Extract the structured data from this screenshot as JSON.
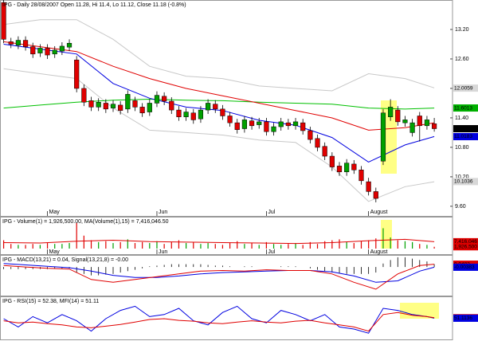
{
  "chart_data": [
    {
      "type": "candlestick",
      "title": "IPG - Daily 28/08/2007 Open 11.28, Hi 11.4, Lo 11.12, Close 11.18 (-0.8%)",
      "xlim": [
        -0.5,
        61.5
      ],
      "xticks": [
        {
          "value": 6,
          "label": "May"
        },
        {
          "value": 21,
          "label": "Jun"
        },
        {
          "value": 36,
          "label": "Jul"
        },
        {
          "value": 50,
          "label": "August"
        }
      ],
      "ylim": [
        9.55,
        13.8
      ],
      "yticks": [
        {
          "value": 13.2,
          "label": "13.20"
        },
        {
          "value": 12.6,
          "label": "12.60"
        },
        {
          "value": 12,
          "label": "12.00"
        },
        {
          "value": 11.4,
          "label": "11.40"
        },
        {
          "value": 10.8,
          "label": "10.80"
        },
        {
          "value": 10.2,
          "label": "10.20"
        },
        {
          "value": 9.6,
          "label": "9.60"
        }
      ],
      "up_color": "#00a000",
      "down_color": "#e00000",
      "open": [
        13.75,
        12.95,
        12.88,
        12.98,
        12.85,
        12.72,
        12.82,
        12.7,
        12.76,
        12.84,
        12.58,
        12.0,
        11.75,
        11.62,
        11.7,
        11.6,
        11.66,
        11.58,
        11.75,
        11.62,
        11.52,
        11.7,
        11.84,
        11.74,
        11.56,
        11.42,
        11.5,
        11.38,
        11.56,
        11.68,
        11.58,
        11.44,
        11.3,
        11.18,
        11.34,
        11.26,
        11.32,
        11.12,
        11.22,
        11.3,
        11.24,
        11.3,
        11.14,
        10.98,
        10.82,
        10.62,
        10.42,
        10.3,
        10.46,
        10.34,
        10.1,
        9.9,
        10.52,
        11.42,
        11.56,
        11.3,
        11.1,
        11.44,
        11.24,
        11.28
      ],
      "high": [
        13.8,
        13.03,
        13.06,
        13.06,
        12.93,
        12.9,
        12.9,
        12.86,
        12.94,
        13.0,
        12.66,
        12.08,
        11.83,
        11.8,
        11.78,
        11.76,
        11.74,
        11.96,
        11.83,
        11.7,
        11.78,
        11.94,
        11.92,
        11.82,
        11.64,
        11.6,
        11.58,
        11.64,
        11.78,
        11.76,
        11.66,
        11.52,
        11.38,
        11.44,
        11.42,
        11.4,
        11.4,
        11.3,
        11.4,
        11.38,
        11.4,
        11.38,
        11.22,
        11.06,
        10.9,
        10.7,
        10.5,
        10.56,
        10.54,
        10.42,
        10.18,
        9.98,
        11.58,
        11.78,
        11.64,
        11.44,
        11.38,
        11.52,
        11.44,
        11.4
      ],
      "low": [
        12.92,
        12.82,
        12.8,
        12.77,
        12.62,
        12.64,
        12.6,
        12.62,
        12.68,
        12.76,
        11.92,
        11.64,
        11.54,
        11.54,
        11.5,
        11.52,
        11.47,
        11.5,
        11.54,
        11.42,
        11.44,
        11.62,
        11.66,
        11.48,
        11.34,
        11.34,
        11.28,
        11.3,
        11.48,
        11.5,
        11.36,
        11.22,
        11.08,
        11.1,
        11.16,
        11.18,
        11.04,
        11.04,
        11.14,
        11.16,
        11.16,
        11.06,
        10.88,
        10.72,
        10.54,
        10.32,
        10.22,
        10.22,
        10.26,
        10.04,
        9.82,
        9.68,
        10.44,
        11.34,
        11.24,
        11.22,
        11.02,
        10.92,
        11.16,
        11.12
      ],
      "close": [
        13.0,
        12.9,
        12.98,
        12.85,
        12.7,
        12.82,
        12.68,
        12.78,
        12.86,
        12.92,
        12.0,
        11.72,
        11.62,
        11.72,
        11.58,
        11.68,
        11.55,
        11.88,
        11.62,
        11.5,
        11.7,
        11.86,
        11.74,
        11.56,
        11.42,
        11.52,
        11.36,
        11.56,
        11.7,
        11.58,
        11.44,
        11.3,
        11.16,
        11.36,
        11.24,
        11.32,
        11.12,
        11.22,
        11.32,
        11.24,
        11.32,
        11.14,
        10.96,
        10.8,
        10.62,
        10.4,
        10.3,
        10.48,
        10.34,
        10.12,
        9.9,
        9.76,
        11.5,
        11.62,
        11.32,
        11.36,
        11.3,
        11.24,
        11.36,
        11.18
      ],
      "lines": [
        {
          "color": "#c8c8c8",
          "x": [
            0,
            5,
            10,
            15,
            20,
            25,
            30,
            35,
            40,
            45,
            50,
            55,
            59
          ],
          "values": [
            13.3,
            13.4,
            13.4,
            13.0,
            12.45,
            12.25,
            12.2,
            12.05,
            12.0,
            11.95,
            12.3,
            12.2,
            12.01
          ]
        },
        {
          "color": "#c8c8c8",
          "x": [
            0,
            5,
            10,
            15,
            20,
            25,
            30,
            35,
            40,
            45,
            50,
            55,
            59
          ],
          "values": [
            12.4,
            12.3,
            12.2,
            11.6,
            11.15,
            11.1,
            11.05,
            10.95,
            10.9,
            10.4,
            9.7,
            10.0,
            10.1
          ]
        },
        {
          "color": "#00c000",
          "x": [
            0,
            5,
            10,
            15,
            20,
            25,
            30,
            35,
            40,
            45,
            50,
            55,
            59
          ],
          "values": [
            11.6,
            11.66,
            11.72,
            11.76,
            11.78,
            11.76,
            11.75,
            11.72,
            11.7,
            11.68,
            11.6,
            11.58,
            11.6
          ]
        },
        {
          "color": "#e00000",
          "x": [
            0,
            5,
            10,
            15,
            20,
            25,
            30,
            35,
            40,
            45,
            50,
            55,
            59
          ],
          "values": [
            12.95,
            12.85,
            12.75,
            12.45,
            12.2,
            12.0,
            11.85,
            11.7,
            11.55,
            11.4,
            11.15,
            11.2,
            11.3
          ]
        },
        {
          "color": "#0000e0",
          "x": [
            0,
            5,
            10,
            15,
            20,
            25,
            30,
            35,
            40,
            45,
            50,
            55,
            59
          ],
          "values": [
            12.9,
            12.8,
            12.7,
            12.1,
            11.8,
            11.62,
            11.55,
            11.35,
            11.25,
            11.0,
            10.5,
            10.85,
            11.02
          ]
        }
      ],
      "boxes": [
        {
          "value": 12.0059,
          "label": "12.0059",
          "color": "#d8d8d8",
          "text_color": "#000000"
        },
        {
          "value": 11.6013,
          "label": "11.6013",
          "color": "#00b000",
          "text_color": "#ffffff"
        },
        {
          "value": 11.18,
          "label": "11.18",
          "color": "#000000",
          "text_color": "#ffffff"
        },
        {
          "value": 11.0183,
          "label": "11.0183",
          "color": "#0000e0",
          "text_color": "#ffffff"
        },
        {
          "value": 10.1036,
          "label": "10.1036",
          "color": "#d8d8d8",
          "text_color": "#000000"
        }
      ]
    },
    {
      "type": "volume",
      "title": "IPG - Volume(1) = 1,926,500.00, MA(Volume(1),15) = 7,416,046.50",
      "ylim": [
        0,
        31000000
      ],
      "values": [
        9000000,
        5000000,
        4000000,
        4000000,
        5000000,
        4000000,
        6000000,
        5000000,
        5000000,
        6000000,
        28000000,
        14000000,
        9000000,
        7000000,
        8000000,
        6000000,
        7000000,
        10000000,
        6000000,
        7000000,
        6000000,
        8000000,
        5000000,
        7000000,
        9000000,
        6000000,
        7000000,
        5000000,
        6000000,
        5000000,
        4000000,
        6000000,
        8000000,
        5000000,
        6000000,
        4000000,
        7000000,
        5000000,
        4000000,
        5000000,
        6000000,
        4000000,
        7000000,
        5000000,
        8000000,
        9000000,
        10000000,
        7000000,
        6000000,
        8000000,
        9000000,
        11000000,
        22000000,
        12000000,
        9000000,
        8000000,
        7000000,
        5000000,
        4000000,
        1926500
      ],
      "lines": [
        {
          "color": "#e00000",
          "x": [
            0,
            5,
            10,
            15,
            20,
            25,
            30,
            35,
            40,
            45,
            50,
            55,
            59
          ],
          "values": [
            6500000,
            6000000,
            8000000,
            9000000,
            7500000,
            7000000,
            6500000,
            6000000,
            5500000,
            6500000,
            8500000,
            10000000,
            7416046.5
          ]
        }
      ],
      "boxes": [
        {
          "value": 7416046,
          "label": "7,416,046",
          "color": "#e00000",
          "text_color": "#ffffff"
        },
        {
          "value": 1926500,
          "label": "1,926,500",
          "color": "#e00000",
          "text_color": "#ffffff"
        }
      ]
    },
    {
      "type": "macd",
      "title": "IPG - MACD(13,21) = 0.04, Signal(13,21,8) = -0.00",
      "ylim": [
        -0.4,
        0.15
      ],
      "values": [
        -0.03,
        -0.03,
        -0.03,
        -0.03,
        -0.03,
        -0.03,
        -0.03,
        -0.02,
        -0.02,
        -0.02,
        -0.08,
        -0.1,
        -0.12,
        -0.12,
        -0.11,
        -0.1,
        -0.08,
        -0.06,
        -0.04,
        -0.02,
        0.01,
        0.02,
        0.03,
        0.04,
        0.04,
        0.04,
        0.04,
        0.04,
        0.03,
        0.02,
        0.02,
        0.01,
        0.0,
        0.01,
        0.01,
        0.0,
        0.0,
        0.0,
        0.01,
        0.01,
        0.01,
        0.0,
        -0.02,
        -0.04,
        -0.06,
        -0.08,
        -0.09,
        -0.1,
        -0.1,
        -0.1,
        -0.1,
        -0.08,
        0.05,
        0.1,
        0.14,
        0.14,
        0.12,
        0.1,
        0.08,
        0.04
      ],
      "lines": [
        {
          "color": "#0000e0",
          "x": [
            0,
            3,
            6,
            9,
            12,
            15,
            18,
            21,
            24,
            27,
            30,
            33,
            36,
            39,
            42,
            45,
            48,
            51,
            54,
            57,
            59
          ],
          "values": [
            0.05,
            0.03,
            0.01,
            -0.01,
            -0.06,
            -0.12,
            -0.15,
            -0.15,
            -0.13,
            -0.1,
            -0.08,
            -0.07,
            -0.06,
            -0.05,
            -0.05,
            -0.07,
            -0.13,
            -0.22,
            -0.2,
            -0.06,
            -0.00383
          ]
        },
        {
          "color": "#e00000",
          "x": [
            0,
            3,
            6,
            9,
            12,
            15,
            18,
            21,
            24,
            27,
            30,
            33,
            36,
            39,
            42,
            45,
            48,
            51,
            54,
            57,
            59
          ],
          "values": [
            0.02,
            0.0,
            -0.02,
            -0.03,
            -0.18,
            -0.22,
            -0.18,
            -0.14,
            -0.1,
            -0.06,
            -0.05,
            -0.06,
            -0.04,
            -0.05,
            -0.05,
            -0.1,
            -0.22,
            -0.32,
            -0.1,
            0.02,
            0.04
          ]
        }
      ],
      "boxes": [
        {
          "value": 0.0403,
          "label": "0.0403",
          "color": "#e00000",
          "text_color": "#ffffff"
        },
        {
          "value": -0.00383,
          "label": "-0.00383",
          "color": "#0000e0",
          "text_color": "#ffffff"
        }
      ]
    },
    {
      "type": "rsi",
      "title": "IPG - RSI(15) = 52.38, MFI(14) = 51.11",
      "ylim": [
        0,
        100
      ],
      "lines": [
        {
          "color": "#0000e0",
          "x": [
            0,
            2,
            4,
            6,
            8,
            10,
            12,
            14,
            16,
            18,
            20,
            22,
            24,
            26,
            28,
            30,
            32,
            34,
            36,
            38,
            40,
            42,
            44,
            46,
            48,
            50,
            52,
            54,
            56,
            58,
            59
          ],
          "values": [
            50,
            30,
            55,
            40,
            60,
            45,
            20,
            50,
            70,
            80,
            55,
            60,
            75,
            45,
            35,
            65,
            80,
            50,
            40,
            70,
            60,
            45,
            60,
            30,
            25,
            15,
            75,
            70,
            60,
            55,
            51.11
          ]
        },
        {
          "color": "#e00000",
          "x": [
            0,
            2,
            4,
            6,
            8,
            10,
            12,
            14,
            16,
            18,
            20,
            22,
            24,
            26,
            28,
            30,
            32,
            34,
            36,
            38,
            40,
            42,
            44,
            46,
            48,
            50,
            52,
            54,
            56,
            58,
            59
          ],
          "values": [
            45,
            40,
            42,
            38,
            35,
            30,
            28,
            32,
            36,
            42,
            48,
            50,
            46,
            44,
            40,
            38,
            42,
            45,
            42,
            40,
            44,
            46,
            40,
            35,
            30,
            20,
            60,
            65,
            58,
            55,
            52.38
          ]
        }
      ],
      "boxes": [
        {
          "value": 52.3802,
          "label": "52.3802",
          "color": "#e00000",
          "text_color": "#ffffff"
        },
        {
          "value": 51.1136,
          "label": "51.1136",
          "color": "#0000e0",
          "text_color": "#ffffff"
        }
      ]
    }
  ]
}
